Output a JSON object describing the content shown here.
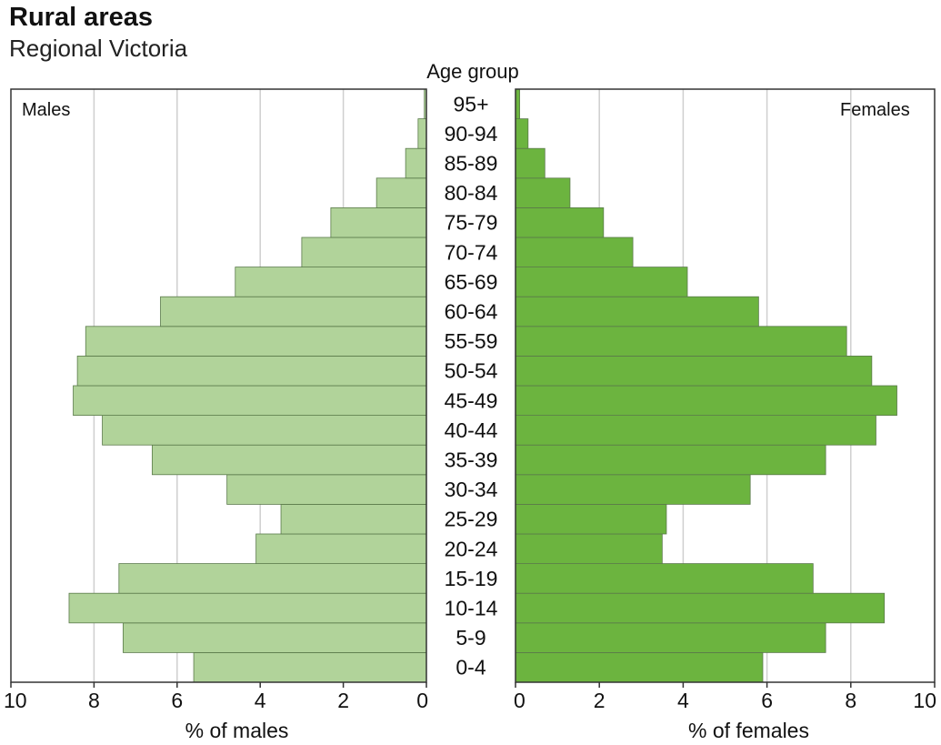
{
  "header": {
    "title": "Rural areas",
    "subtitle": "Regional Victoria",
    "age_axis_title": "Age group"
  },
  "colors": {
    "males": "#b1d39a",
    "females": "#6cb43f",
    "bar_edge": "#5a7a4a",
    "grid": "#cfcfcf",
    "frame": "#333333"
  },
  "chart_data": {
    "type": "bar",
    "orientation": "horizontal",
    "layout": "population-pyramid",
    "categories": [
      "0-4",
      "5-9",
      "10-14",
      "15-19",
      "20-24",
      "25-29",
      "30-34",
      "35-39",
      "40-44",
      "45-49",
      "50-54",
      "55-59",
      "60-64",
      "65-69",
      "70-74",
      "75-79",
      "80-84",
      "85-89",
      "90-94",
      "95+"
    ],
    "series": [
      {
        "name": "Males",
        "values": [
          5.6,
          7.3,
          8.6,
          7.4,
          4.1,
          3.5,
          4.8,
          6.6,
          7.8,
          8.5,
          8.4,
          8.2,
          6.4,
          4.6,
          3.0,
          2.3,
          1.2,
          0.5,
          0.2,
          0.05
        ]
      },
      {
        "name": "Females",
        "values": [
          5.9,
          7.4,
          8.8,
          7.1,
          3.5,
          3.6,
          5.6,
          7.4,
          8.6,
          9.1,
          8.5,
          7.9,
          5.8,
          4.1,
          2.8,
          2.1,
          1.3,
          0.7,
          0.3,
          0.1
        ]
      }
    ],
    "left_panel": {
      "label": "Males",
      "xlabel": "% of males",
      "xlim": [
        10,
        0
      ],
      "ticks": [
        "10",
        "8",
        "6",
        "4",
        "2",
        "0"
      ]
    },
    "right_panel": {
      "label": "Females",
      "xlabel": "% of females",
      "xlim": [
        0,
        10
      ],
      "ticks": [
        "0",
        "2",
        "4",
        "6",
        "8",
        "10"
      ]
    },
    "grid": true
  }
}
